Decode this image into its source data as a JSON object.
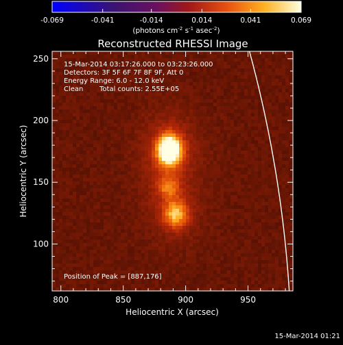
{
  "colorbar": {
    "tick_labels": [
      "-0.069",
      "-0.041",
      "-0.014",
      "0.014",
      "0.041",
      "0.069"
    ],
    "range": [
      -0.069,
      0.069
    ],
    "unit_main": "(photons cm",
    "unit_sup1": "-2",
    "unit_mid1": " s",
    "unit_sup2": "-1",
    "unit_mid2": " asec",
    "unit_sup3": "-2",
    "unit_end": ")"
  },
  "info": {
    "time_range": "15-Mar-2014 03:17:26.000 to 03:23:26.000",
    "detectors": "Detectors: 3F 5F 6F 7F 8F 9F, Att 0",
    "energy": "Energy Range: 6.0 - 12.0 keV",
    "clean_label": "Clean",
    "counts": "Total counts: 2.55E+05",
    "peak": "Position of Peak = [887,176]"
  },
  "footer": {
    "timestamp": "15-Mar-2014 01:21"
  },
  "colors": {
    "background": "#000000",
    "text": "#ffffff",
    "limb": "#ffffff"
  },
  "chart_data": {
    "type": "heatmap",
    "title": "Reconstructed RHESSI Image",
    "xlabel": "Heliocentric X (arcsec)",
    "ylabel": "Heliocentric Y (arcsec)",
    "xlim": [
      793,
      986
    ],
    "ylim": [
      62,
      256
    ],
    "x_ticks": [
      800,
      850,
      900,
      950
    ],
    "y_ticks": [
      100,
      150,
      200,
      250
    ],
    "grid": false,
    "background_level": 0.22,
    "sources": [
      {
        "x": 887,
        "y": 176,
        "sx": 7,
        "sy": 9,
        "amp": 1.0
      },
      {
        "x": 892,
        "y": 124,
        "sx": 7,
        "sy": 8,
        "amp": 0.55
      },
      {
        "x": 886,
        "y": 146,
        "sx": 6,
        "sy": 6,
        "amp": 0.35
      }
    ],
    "solar_limb": {
      "radius": 985
    },
    "peak": [
      887,
      176
    ]
  }
}
